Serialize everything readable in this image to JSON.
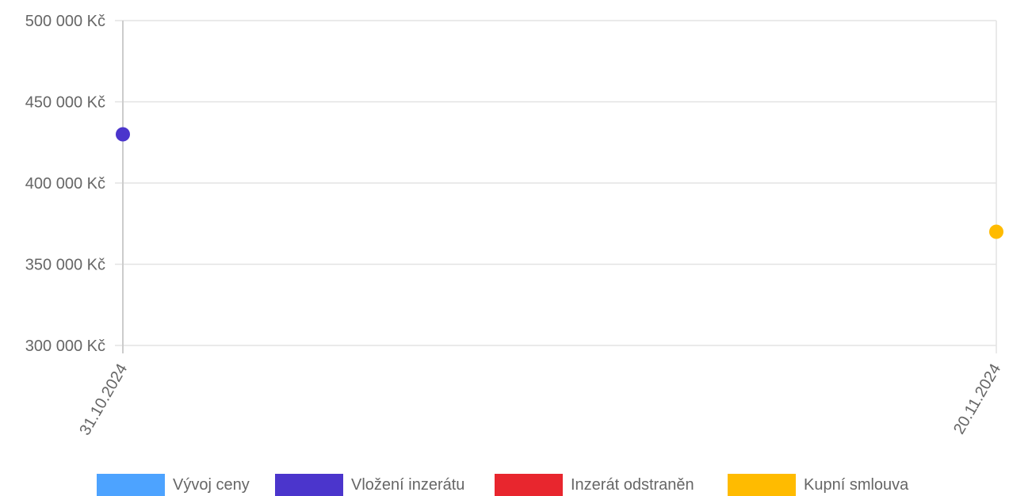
{
  "chart_data": {
    "type": "scatter",
    "title": "",
    "xlabel": "",
    "ylabel": "",
    "x_categories": [
      "31.10.2024",
      "20.11.2024"
    ],
    "ylim": [
      300000,
      500000
    ],
    "y_ticks": [
      {
        "value": 500000,
        "label": "500 000 Kč"
      },
      {
        "value": 450000,
        "label": "450 000 Kč"
      },
      {
        "value": 400000,
        "label": "400 000 Kč"
      },
      {
        "value": 350000,
        "label": "350 000 Kč"
      },
      {
        "value": 300000,
        "label": "300 000 Kč"
      }
    ],
    "grid": true,
    "legend_position": "bottom",
    "series": [
      {
        "name": "Vývoj ceny",
        "color": "#4da3ff",
        "points": []
      },
      {
        "name": "Vložení inzerátu",
        "color": "#4b35cc",
        "points": [
          {
            "x": "31.10.2024",
            "y": 430000
          }
        ]
      },
      {
        "name": "Inzerát odstraněn",
        "color": "#e8262e",
        "points": []
      },
      {
        "name": "Kupní smlouva",
        "color": "#ffbb00",
        "points": [
          {
            "x": "20.11.2024",
            "y": 370000
          }
        ]
      }
    ]
  }
}
